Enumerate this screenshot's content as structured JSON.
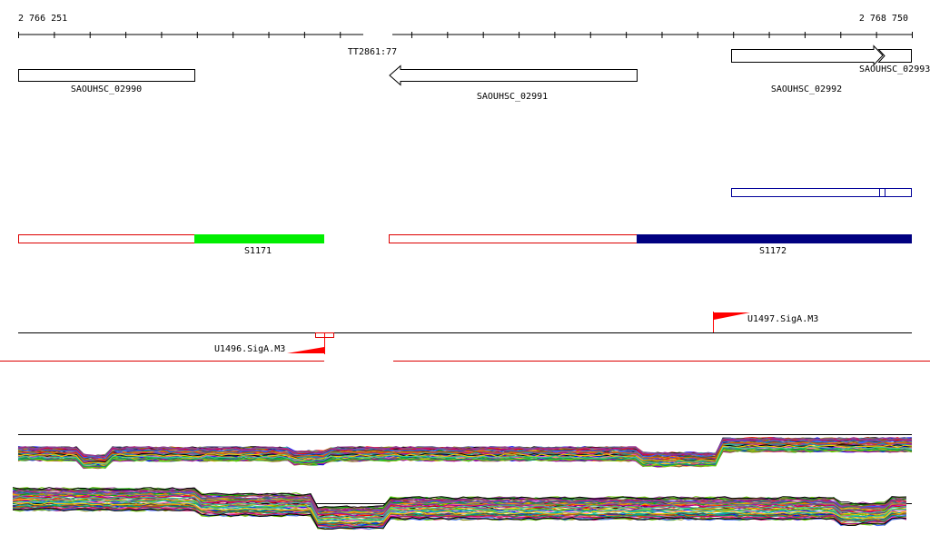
{
  "ruler": {
    "start_label": "2 766 251",
    "end_label": "2 768 750",
    "start": 2766251,
    "end": 2768750
  },
  "terminator": {
    "label": "TT2861:77"
  },
  "genes": [
    {
      "id": "g1",
      "label": "SAOUHSC_02990",
      "strand": "none"
    },
    {
      "id": "g2",
      "label": "SAOUHSC_02991",
      "strand": "-"
    },
    {
      "id": "g3",
      "label": "SAOUHSC_02992",
      "strand": "+"
    },
    {
      "id": "g4",
      "label": "SAOUHSC_02993",
      "strand": "+"
    }
  ],
  "segments": [
    {
      "id": "s1",
      "label": "S1171",
      "color": "#00ee00"
    },
    {
      "id": "s2",
      "label": "S1172",
      "color": "#000080"
    }
  ],
  "promoters": [
    {
      "id": "p1",
      "label": "U1496.SigA.M3",
      "strand": "-"
    },
    {
      "id": "p2",
      "label": "U1497.SigA.M3",
      "strand": "+"
    }
  ],
  "colors": {
    "outline_red": "#dd0000",
    "outline_blue": "#000099",
    "promoter_red": "#ff0000"
  },
  "expression_profile": {
    "group1_line_count": 60,
    "group2_line_count": 60
  }
}
